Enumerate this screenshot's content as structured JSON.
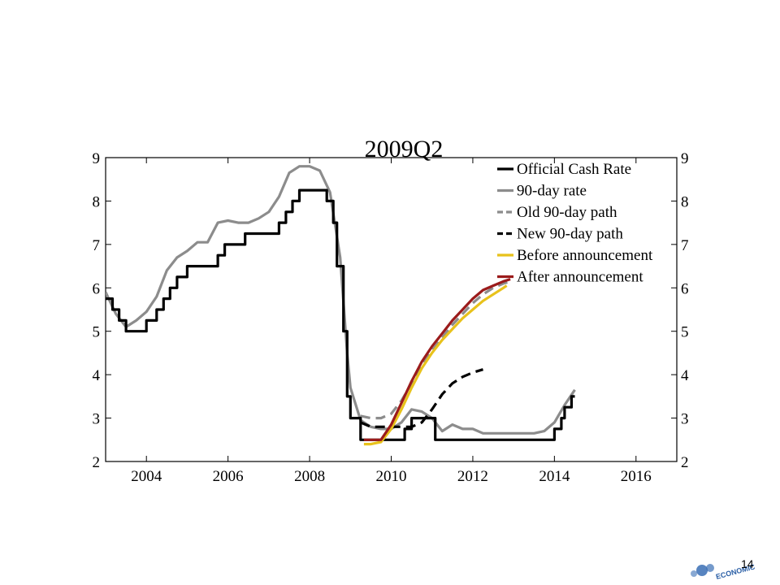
{
  "chart_data": {
    "type": "line",
    "title": "2009Q2",
    "xlabel": "",
    "ylabel": "",
    "xlim": [
      2003,
      2017
    ],
    "ylim": [
      2,
      9
    ],
    "xticks": [
      2004,
      2006,
      2008,
      2010,
      2012,
      2014,
      2016
    ],
    "xtick_labels": [
      "2004",
      "2006",
      "2008",
      "2010",
      "2012",
      "2014",
      "2016"
    ],
    "yticks": [
      2,
      3,
      4,
      5,
      6,
      7,
      8,
      9
    ],
    "ytick_labels": [
      "2",
      "3",
      "4",
      "5",
      "6",
      "7",
      "8",
      "9"
    ],
    "right_axis_mirrors_left": true,
    "grid": false,
    "legend_position": "top-right",
    "series": [
      {
        "name": "Official Cash Rate",
        "color": "#000000",
        "style": "solid",
        "step": true,
        "x": [
          2003.0,
          2003.17,
          2003.33,
          2003.5,
          2004.0,
          2004.25,
          2004.42,
          2004.58,
          2004.75,
          2005.0,
          2005.75,
          2005.92,
          2006.42,
          2007.0,
          2007.25,
          2007.42,
          2007.58,
          2007.75,
          2008.42,
          2008.58,
          2008.67,
          2008.83,
          2008.92,
          2009.0,
          2009.17,
          2009.25,
          2010.33,
          2010.5,
          2010.58,
          2011.08,
          2011.17,
          2014.0,
          2014.17,
          2014.25,
          2014.42,
          2014.5
        ],
        "y": [
          5.75,
          5.5,
          5.25,
          5.0,
          5.25,
          5.5,
          5.75,
          6.0,
          6.25,
          6.5,
          6.75,
          7.0,
          7.25,
          7.25,
          7.5,
          7.75,
          8.0,
          8.25,
          8.0,
          7.5,
          6.5,
          5.0,
          3.5,
          3.0,
          3.0,
          2.5,
          2.75,
          3.0,
          3.0,
          2.5,
          2.5,
          2.75,
          3.0,
          3.25,
          3.5,
          3.5
        ]
      },
      {
        "name": "90-day rate",
        "color": "#8c8c8c",
        "style": "solid",
        "step": false,
        "x": [
          2003.0,
          2003.25,
          2003.5,
          2003.75,
          2004.0,
          2004.25,
          2004.5,
          2004.75,
          2005.0,
          2005.25,
          2005.5,
          2005.75,
          2006.0,
          2006.25,
          2006.5,
          2006.75,
          2007.0,
          2007.25,
          2007.5,
          2007.75,
          2008.0,
          2008.25,
          2008.5,
          2008.75,
          2008.92,
          2009.0,
          2009.25,
          2009.5,
          2009.75,
          2010.0,
          2010.25,
          2010.5,
          2010.75,
          2011.0,
          2011.25,
          2011.5,
          2011.75,
          2012.0,
          2012.25,
          2012.5,
          2012.75,
          2013.0,
          2013.25,
          2013.5,
          2013.75,
          2014.0,
          2014.25,
          2014.5
        ],
        "y": [
          5.9,
          5.4,
          5.1,
          5.25,
          5.45,
          5.8,
          6.4,
          6.7,
          6.85,
          7.05,
          7.05,
          7.5,
          7.55,
          7.5,
          7.5,
          7.6,
          7.75,
          8.1,
          8.65,
          8.8,
          8.8,
          8.7,
          8.2,
          6.7,
          4.5,
          3.7,
          2.95,
          2.8,
          2.75,
          2.75,
          2.9,
          3.2,
          3.15,
          3.0,
          2.7,
          2.85,
          2.75,
          2.75,
          2.65,
          2.65,
          2.65,
          2.65,
          2.65,
          2.65,
          2.7,
          2.9,
          3.3,
          3.65
        ]
      },
      {
        "name": "Old 90-day path",
        "color": "#8c8c8c",
        "style": "dashed",
        "step": false,
        "x": [
          2009.25,
          2009.5,
          2009.75,
          2010.0,
          2010.25,
          2010.5,
          2010.75,
          2011.0,
          2011.25,
          2011.5,
          2011.75,
          2012.0,
          2012.25,
          2012.5,
          2012.75,
          2012.92
        ],
        "y": [
          3.05,
          3.0,
          3.0,
          3.1,
          3.4,
          3.8,
          4.2,
          4.55,
          4.85,
          5.15,
          5.4,
          5.65,
          5.85,
          6.0,
          6.1,
          6.15
        ]
      },
      {
        "name": "New 90-day path",
        "color": "#000000",
        "style": "dashed",
        "step": false,
        "x": [
          2009.25,
          2009.5,
          2009.75,
          2010.0,
          2010.25,
          2010.5,
          2010.75,
          2011.0,
          2011.25,
          2011.5,
          2011.75,
          2012.0,
          2012.25
        ],
        "y": [
          2.9,
          2.8,
          2.8,
          2.8,
          2.8,
          2.8,
          2.9,
          3.2,
          3.55,
          3.8,
          3.95,
          4.05,
          4.12
        ]
      },
      {
        "name": "Before announcement",
        "color": "#e8c21b",
        "style": "solid",
        "step": false,
        "x": [
          2009.33,
          2009.5,
          2009.75,
          2010.0,
          2010.25,
          2010.5,
          2010.75,
          2011.0,
          2011.25,
          2011.5,
          2011.75,
          2012.0,
          2012.25,
          2012.5,
          2012.75,
          2012.83
        ],
        "y": [
          2.4,
          2.4,
          2.45,
          2.75,
          3.2,
          3.7,
          4.15,
          4.5,
          4.8,
          5.05,
          5.3,
          5.5,
          5.7,
          5.85,
          6.0,
          6.05
        ]
      },
      {
        "name": "After announcement",
        "color": "#9b1b1b",
        "style": "solid",
        "step": false,
        "x": [
          2009.33,
          2009.5,
          2009.75,
          2010.0,
          2010.25,
          2010.5,
          2010.75,
          2011.0,
          2011.25,
          2011.5,
          2011.75,
          2012.0,
          2012.25,
          2012.5,
          2012.75,
          2012.92
        ],
        "y": [
          2.5,
          2.5,
          2.5,
          2.85,
          3.35,
          3.85,
          4.3,
          4.65,
          4.95,
          5.25,
          5.5,
          5.75,
          5.95,
          6.05,
          6.15,
          6.2
        ]
      }
    ]
  },
  "footer": {
    "page_number": "14",
    "logo_text": "ECONOMIC"
  }
}
